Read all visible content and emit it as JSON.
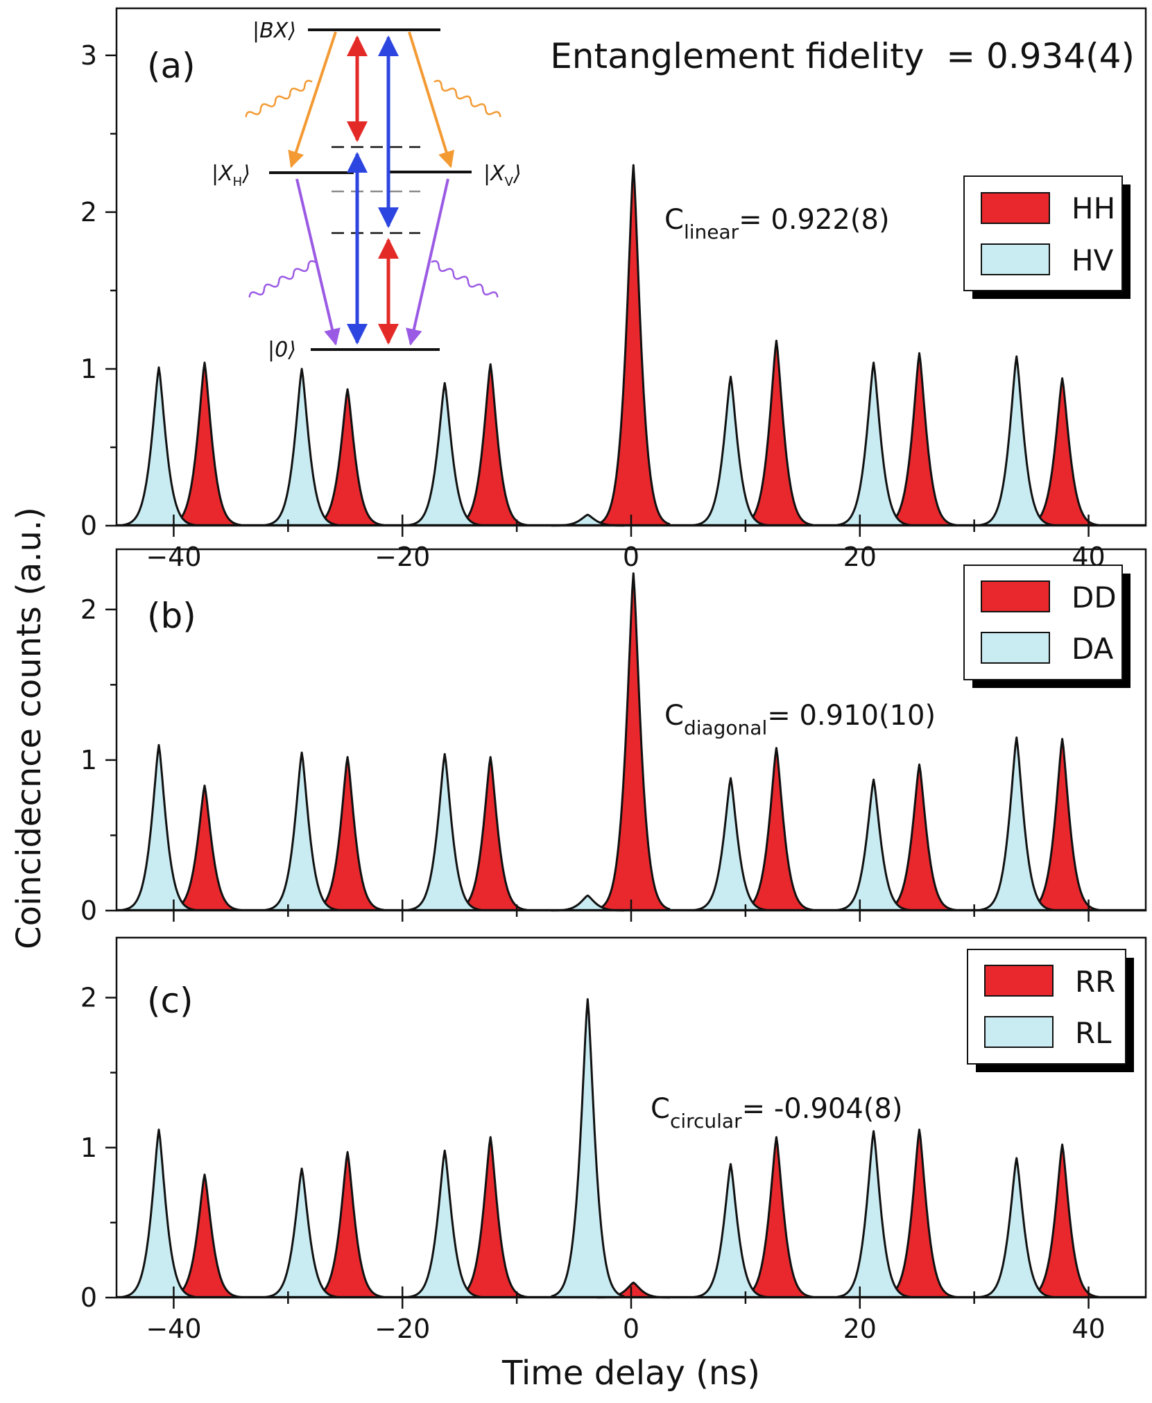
{
  "figure": {
    "fidelity_label": "Entanglement fidelity  = 0.934(4)",
    "ylabel": "Coincidecnce counts (a.u.)",
    "xlabel": "Time delay (ns)"
  },
  "colors": {
    "copolarized": "#e8282c",
    "crosspolarized": "#c9ecf3",
    "orange": "#f39a33",
    "red": "#e32a27",
    "blue": "#2d45e0",
    "purple": "#9b5ae4",
    "outline": "#111111"
  },
  "level_scheme": {
    "bx": "|BX⟩",
    "xh_main": "|X",
    "xh_sub": "H",
    "xv_main": "|X",
    "xv_sub": "V",
    "ground": "|0⟩",
    "icon": "quantum-dot-biexciton-cascade"
  },
  "chart_data": [
    {
      "id": "a",
      "type": "area",
      "panel_label": "(a)",
      "legend": [
        {
          "name": "HH",
          "color": "#e8282c"
        },
        {
          "name": "HV",
          "color": "#c9ecf3"
        }
      ],
      "legend_position": "right",
      "annotation": {
        "prefix": "C",
        "sub": "linear",
        "text": "= 0.922(8)"
      },
      "xlim": [
        -45,
        45
      ],
      "ylim": [
        0,
        3.3
      ],
      "xticks": [
        -40,
        -20,
        0,
        20,
        40
      ],
      "yticks": [
        0,
        1,
        2,
        3
      ],
      "xticklabels": [
        "−40",
        "−20",
        "0",
        "20",
        "40"
      ],
      "yticklabels": [
        "0",
        "1",
        "2",
        "3"
      ],
      "series": [
        {
          "name": "HH",
          "peaks": [
            {
              "x": -37.3,
              "h": 1.04
            },
            {
              "x": -24.8,
              "h": 0.87
            },
            {
              "x": -12.3,
              "h": 1.03
            },
            {
              "x": 0.2,
              "h": 2.3
            },
            {
              "x": 12.7,
              "h": 1.18
            },
            {
              "x": 25.2,
              "h": 1.1
            },
            {
              "x": 37.7,
              "h": 0.94
            }
          ]
        },
        {
          "name": "HV",
          "peaks": [
            {
              "x": -41.3,
              "h": 1.01
            },
            {
              "x": -28.8,
              "h": 1.0
            },
            {
              "x": -16.3,
              "h": 0.91
            },
            {
              "x": 8.7,
              "h": 0.95
            },
            {
              "x": 21.2,
              "h": 1.04
            },
            {
              "x": 33.7,
              "h": 1.08
            },
            {
              "x": -3.8,
              "h": 0.07
            }
          ]
        }
      ]
    },
    {
      "id": "b",
      "type": "area",
      "panel_label": "(b)",
      "legend": [
        {
          "name": "DD",
          "color": "#e8282c"
        },
        {
          "name": "DA",
          "color": "#c9ecf3"
        }
      ],
      "legend_position": "right",
      "annotation": {
        "prefix": "C",
        "sub": "diagonal",
        "text": "= 0.910(10)"
      },
      "xlim": [
        -45,
        45
      ],
      "ylim": [
        0,
        2.4
      ],
      "xticks": [
        -40,
        -20,
        0,
        20,
        40
      ],
      "yticks": [
        0,
        1,
        2
      ],
      "xticklabels": [
        "",
        "",
        "",
        "",
        ""
      ],
      "yticklabels": [
        "0",
        "1",
        "2"
      ],
      "series": [
        {
          "name": "DD",
          "peaks": [
            {
              "x": -37.3,
              "h": 0.83
            },
            {
              "x": -24.8,
              "h": 1.02
            },
            {
              "x": -12.3,
              "h": 1.02
            },
            {
              "x": 0.2,
              "h": 2.24
            },
            {
              "x": 12.7,
              "h": 1.08
            },
            {
              "x": 25.2,
              "h": 0.97
            },
            {
              "x": 37.7,
              "h": 1.14
            }
          ]
        },
        {
          "name": "DA",
          "peaks": [
            {
              "x": -41.3,
              "h": 1.1
            },
            {
              "x": -28.8,
              "h": 1.05
            },
            {
              "x": -16.3,
              "h": 1.04
            },
            {
              "x": 8.7,
              "h": 0.88
            },
            {
              "x": 21.2,
              "h": 0.87
            },
            {
              "x": 33.7,
              "h": 1.15
            },
            {
              "x": -3.8,
              "h": 0.1
            }
          ]
        }
      ]
    },
    {
      "id": "c",
      "type": "area",
      "panel_label": "(c)",
      "legend": [
        {
          "name": "RR",
          "color": "#e8282c"
        },
        {
          "name": "RL",
          "color": "#c9ecf3"
        }
      ],
      "legend_position": "right",
      "annotation": {
        "prefix": "C",
        "sub": "circular",
        "text": "= -0.904(8)"
      },
      "xlim": [
        -45,
        45
      ],
      "ylim": [
        0,
        2.4
      ],
      "xticks": [
        -40,
        -20,
        0,
        20,
        40
      ],
      "yticks": [
        0,
        1,
        2
      ],
      "xticklabels": [
        "−40",
        "−20",
        "0",
        "20",
        "40"
      ],
      "yticklabels": [
        "0",
        "1",
        "2"
      ],
      "series": [
        {
          "name": "RR",
          "peaks": [
            {
              "x": -37.3,
              "h": 0.82
            },
            {
              "x": -24.8,
              "h": 0.97
            },
            {
              "x": -12.3,
              "h": 1.07
            },
            {
              "x": 0.2,
              "h": 0.1
            },
            {
              "x": 12.7,
              "h": 1.07
            },
            {
              "x": 25.2,
              "h": 1.12
            },
            {
              "x": 37.7,
              "h": 1.02
            }
          ]
        },
        {
          "name": "RL",
          "peaks": [
            {
              "x": -41.3,
              "h": 1.12
            },
            {
              "x": -28.8,
              "h": 0.86
            },
            {
              "x": -16.3,
              "h": 0.98
            },
            {
              "x": -3.8,
              "h": 1.99
            },
            {
              "x": 8.7,
              "h": 0.89
            },
            {
              "x": 21.2,
              "h": 1.11
            },
            {
              "x": 33.7,
              "h": 0.93
            }
          ]
        }
      ]
    }
  ]
}
